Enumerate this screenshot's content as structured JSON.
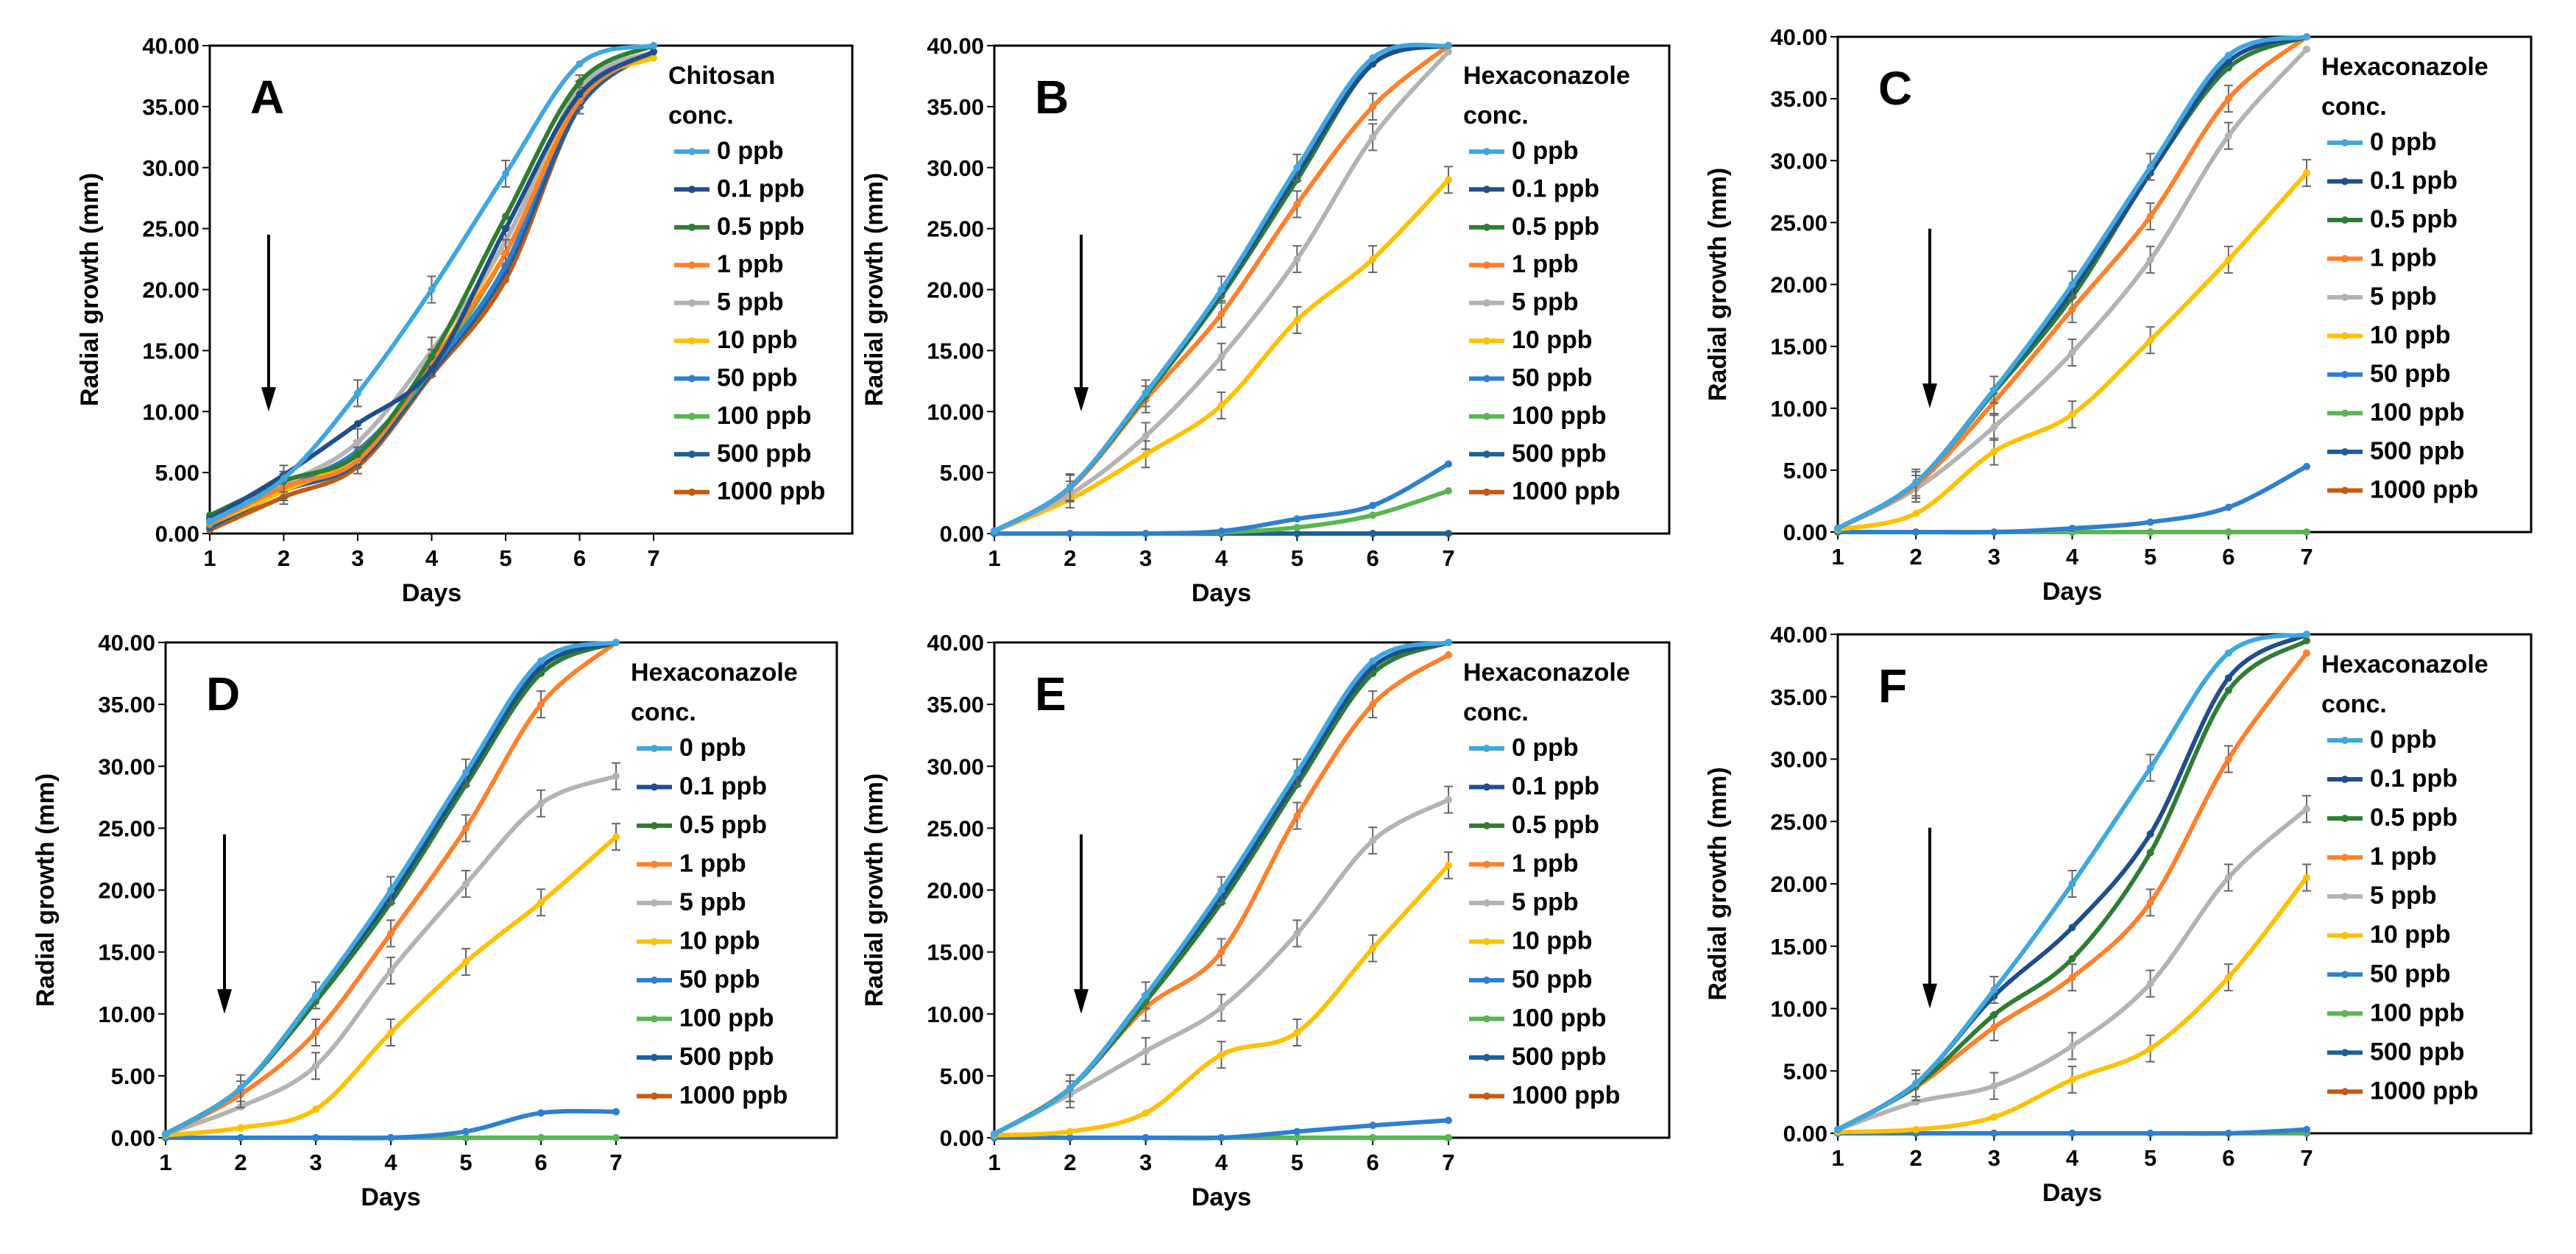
{
  "figure": {
    "ylabel": "Radial growth (mm)",
    "xlabel": "Days",
    "x_ticks": [
      1,
      2,
      3,
      4,
      5,
      6,
      7
    ],
    "y_ticks": [
      "0.00",
      "5.00",
      "10.00",
      "15.00",
      "20.00",
      "25.00",
      "30.00",
      "35.00",
      "40.00"
    ],
    "series_names": [
      "0 ppb",
      "0.1 ppb",
      "0.5 ppb",
      "1 ppb",
      "5 ppb",
      "10 ppb",
      "50 ppb",
      "100 ppb",
      "500 ppb",
      "1000 ppb"
    ],
    "colors": [
      "#3fa7e0",
      "#1f4e8c",
      "#2e7d32",
      "#ff7f2a",
      "#b3b3b3",
      "#ffc000",
      "#2f7fd0",
      "#5ab552",
      "#1d5f9a",
      "#c55a11"
    ]
  },
  "chart_data": [
    {
      "type": "line",
      "panel": "A",
      "legend_title_line1": "Chitosan",
      "legend_title_line2": "conc.",
      "xlabel": "Days",
      "ylabel": "Radial growth (mm)",
      "xlim": [
        1,
        7
      ],
      "ylim": [
        0,
        40
      ],
      "x": [
        1,
        2,
        3,
        4,
        5,
        6,
        7
      ],
      "series": [
        {
          "name": "0 ppb",
          "values": [
            1.0,
            4.5,
            11.5,
            20.0,
            29.5,
            38.5,
            40.0
          ]
        },
        {
          "name": "0.1 ppb",
          "values": [
            1.2,
            4.8,
            9.0,
            13.5,
            25.0,
            36.0,
            39.5
          ]
        },
        {
          "name": "0.5 ppb",
          "values": [
            1.5,
            4.3,
            6.5,
            14.5,
            26.0,
            37.0,
            40.0
          ]
        },
        {
          "name": "1 ppb",
          "values": [
            0.8,
            3.8,
            6.0,
            14.0,
            23.0,
            35.5,
            39.5
          ]
        },
        {
          "name": "5 ppb",
          "values": [
            1.0,
            4.0,
            7.5,
            15.0,
            24.0,
            36.5,
            39.5
          ]
        },
        {
          "name": "10 ppb",
          "values": [
            0.8,
            3.5,
            6.5,
            14.0,
            24.0,
            36.0,
            39.0
          ]
        },
        {
          "name": "50 ppb",
          "values": [
            0.7,
            3.8,
            6.8,
            13.5,
            22.0,
            36.0,
            39.5
          ]
        },
        {
          "name": "100 ppb",
          "values": [
            0.8,
            3.7,
            6.5,
            13.5,
            23.0,
            35.5,
            39.5
          ]
        },
        {
          "name": "500 ppb",
          "values": [
            0.5,
            3.5,
            5.8,
            13.2,
            21.5,
            35.0,
            39.5
          ]
        },
        {
          "name": "1000 ppb",
          "values": [
            0.3,
            3.0,
            5.5,
            13.0,
            20.8,
            35.0,
            39.5
          ]
        }
      ]
    },
    {
      "type": "line",
      "panel": "B",
      "legend_title_line1": "Hexaconazole",
      "legend_title_line2": "conc.",
      "xlabel": "Days",
      "ylabel": "Radial growth (mm)",
      "xlim": [
        1,
        7
      ],
      "ylim": [
        0,
        40
      ],
      "x": [
        1,
        2,
        3,
        4,
        5,
        6,
        7
      ],
      "series": [
        {
          "name": "0 ppb",
          "values": [
            0.2,
            3.8,
            11.5,
            20.0,
            30.0,
            39.0,
            40.0
          ]
        },
        {
          "name": "0.1 ppb",
          "values": [
            0.2,
            3.8,
            11.5,
            19.8,
            29.5,
            38.5,
            40.0
          ]
        },
        {
          "name": "0.5 ppb",
          "values": [
            0.2,
            3.8,
            11.3,
            19.5,
            29.0,
            38.5,
            40.0
          ]
        },
        {
          "name": "1 ppb",
          "values": [
            0.2,
            3.7,
            11.0,
            18.0,
            27.0,
            35.0,
            40.0
          ]
        },
        {
          "name": "5 ppb",
          "values": [
            0.2,
            3.2,
            8.0,
            14.5,
            22.5,
            32.5,
            39.5
          ]
        },
        {
          "name": "10 ppb",
          "values": [
            0.2,
            2.8,
            6.5,
            10.5,
            17.5,
            22.5,
            29.0
          ]
        },
        {
          "name": "50 ppb",
          "values": [
            0.0,
            0.0,
            0.0,
            0.2,
            1.2,
            2.3,
            5.7
          ]
        },
        {
          "name": "100 ppb",
          "values": [
            0.0,
            0.0,
            0.0,
            0.1,
            0.5,
            1.5,
            3.5
          ]
        },
        {
          "name": "500 ppb",
          "values": [
            0.0,
            0.0,
            0.0,
            0.0,
            0.0,
            0.0,
            0.0
          ]
        },
        {
          "name": "1000 ppb",
          "values": [
            0.0,
            0.0,
            0.0,
            0.0,
            0.0,
            0.0,
            0.0
          ]
        }
      ]
    },
    {
      "type": "line",
      "panel": "C",
      "legend_title_line1": "Hexaconazole",
      "legend_title_line2": "conc.",
      "xlabel": "Days",
      "ylabel": "Radial growth (mm)",
      "xlim": [
        1,
        7
      ],
      "ylim": [
        0,
        40
      ],
      "x": [
        1,
        2,
        3,
        4,
        5,
        6,
        7
      ],
      "series": [
        {
          "name": "0 ppb",
          "values": [
            0.3,
            4.0,
            11.5,
            20.0,
            29.5,
            38.5,
            40.0
          ]
        },
        {
          "name": "0.1 ppb",
          "values": [
            0.3,
            4.0,
            11.5,
            19.5,
            29.0,
            38.0,
            40.0
          ]
        },
        {
          "name": "0.5 ppb",
          "values": [
            0.3,
            4.0,
            11.3,
            19.0,
            29.0,
            37.5,
            40.0
          ]
        },
        {
          "name": "1 ppb",
          "values": [
            0.3,
            3.8,
            10.5,
            18.0,
            25.5,
            35.0,
            40.0
          ]
        },
        {
          "name": "5 ppb",
          "values": [
            0.3,
            3.5,
            8.5,
            14.5,
            22.0,
            32.0,
            39.0
          ]
        },
        {
          "name": "10 ppb",
          "values": [
            0.2,
            1.5,
            6.5,
            9.5,
            15.5,
            22.0,
            29.0
          ]
        },
        {
          "name": "50 ppb",
          "values": [
            0.0,
            0.0,
            0.0,
            0.3,
            0.8,
            2.0,
            5.3
          ]
        },
        {
          "name": "100 ppb",
          "values": [
            0.0,
            0.0,
            0.0,
            0.0,
            0.0,
            0.0,
            0.0
          ]
        },
        {
          "name": "500 ppb",
          "values": [
            0.0,
            0.0,
            0.0,
            0.0,
            0.0,
            0.0,
            0.0
          ]
        },
        {
          "name": "1000 ppb",
          "values": [
            0.0,
            0.0,
            0.0,
            0.0,
            0.0,
            0.0,
            0.0
          ]
        }
      ]
    },
    {
      "type": "line",
      "panel": "D",
      "legend_title_line1": "Hexaconazole",
      "legend_title_line2": "conc.",
      "xlabel": "Days",
      "ylabel": "Radial growth (mm)",
      "xlim": [
        1,
        7
      ],
      "ylim": [
        0,
        40
      ],
      "x": [
        1,
        2,
        3,
        4,
        5,
        6,
        7
      ],
      "series": [
        {
          "name": "0 ppb",
          "values": [
            0.3,
            4.0,
            11.5,
            20.0,
            29.5,
            38.5,
            40.0
          ]
        },
        {
          "name": "0.1 ppb",
          "values": [
            0.3,
            4.0,
            11.5,
            19.5,
            29.0,
            38.0,
            40.0
          ]
        },
        {
          "name": "0.5 ppb",
          "values": [
            0.3,
            4.0,
            11.0,
            19.0,
            28.5,
            37.5,
            40.0
          ]
        },
        {
          "name": "1 ppb",
          "values": [
            0.3,
            3.5,
            8.5,
            16.5,
            25.0,
            35.0,
            40.0
          ]
        },
        {
          "name": "5 ppb",
          "values": [
            0.3,
            2.5,
            5.8,
            13.5,
            20.5,
            27.0,
            29.2
          ]
        },
        {
          "name": "10 ppb",
          "values": [
            0.2,
            0.8,
            2.3,
            8.5,
            14.2,
            19.0,
            24.3
          ]
        },
        {
          "name": "50 ppb",
          "values": [
            0.0,
            0.0,
            0.0,
            0.0,
            0.5,
            2.0,
            2.1
          ]
        },
        {
          "name": "100 ppb",
          "values": [
            0.0,
            0.0,
            0.0,
            0.0,
            0.0,
            0.0,
            0.0
          ]
        },
        {
          "name": "500 ppb",
          "values": [
            0.0,
            0.0,
            0.0,
            0.0,
            0.0,
            0.0,
            0.0
          ]
        },
        {
          "name": "1000 ppb",
          "values": [
            0.0,
            0.0,
            0.0,
            0.0,
            0.0,
            0.0,
            0.0
          ]
        }
      ]
    },
    {
      "type": "line",
      "panel": "E",
      "legend_title_line1": "Hexaconazole",
      "legend_title_line2": "conc.",
      "xlabel": "Days",
      "ylabel": "Radial growth (mm)",
      "xlim": [
        1,
        7
      ],
      "ylim": [
        0,
        40
      ],
      "x": [
        1,
        2,
        3,
        4,
        5,
        6,
        7
      ],
      "series": [
        {
          "name": "0 ppb",
          "values": [
            0.3,
            4.0,
            11.5,
            20.0,
            29.5,
            38.5,
            40.0
          ]
        },
        {
          "name": "0.1 ppb",
          "values": [
            0.3,
            4.0,
            11.5,
            19.5,
            29.0,
            38.0,
            40.0
          ]
        },
        {
          "name": "0.5 ppb",
          "values": [
            0.3,
            4.0,
            11.0,
            19.0,
            28.5,
            37.5,
            40.0
          ]
        },
        {
          "name": "1 ppb",
          "values": [
            0.3,
            4.0,
            10.5,
            15.0,
            26.0,
            35.0,
            39.0
          ]
        },
        {
          "name": "5 ppb",
          "values": [
            0.3,
            3.5,
            7.0,
            10.5,
            16.5,
            24.0,
            27.3
          ]
        },
        {
          "name": "10 ppb",
          "values": [
            0.2,
            0.5,
            2.0,
            6.7,
            8.5,
            15.3,
            22.0
          ]
        },
        {
          "name": "50 ppb",
          "values": [
            0.0,
            0.0,
            0.0,
            0.0,
            0.5,
            1.0,
            1.4
          ]
        },
        {
          "name": "100 ppb",
          "values": [
            0.0,
            0.0,
            0.0,
            0.0,
            0.0,
            0.0,
            0.0
          ]
        },
        {
          "name": "500 ppb",
          "values": [
            0.0,
            0.0,
            0.0,
            0.0,
            0.0,
            0.0,
            0.0
          ]
        },
        {
          "name": "1000 ppb",
          "values": [
            0.0,
            0.0,
            0.0,
            0.0,
            0.0,
            0.0,
            0.0
          ]
        }
      ]
    },
    {
      "type": "line",
      "panel": "F",
      "legend_title_line1": "Hexaconazole",
      "legend_title_line2": "conc.",
      "xlabel": "Days",
      "ylabel": "Radial growth (mm)",
      "xlim": [
        1,
        7
      ],
      "ylim": [
        0,
        40
      ],
      "x": [
        1,
        2,
        3,
        4,
        5,
        6,
        7
      ],
      "series": [
        {
          "name": "0 ppb",
          "values": [
            0.3,
            4.0,
            11.5,
            20.0,
            29.3,
            38.5,
            40.0
          ]
        },
        {
          "name": "0.1 ppb",
          "values": [
            0.3,
            4.0,
            11.0,
            16.5,
            24.0,
            36.5,
            40.0
          ]
        },
        {
          "name": "0.5 ppb",
          "values": [
            0.3,
            3.8,
            9.5,
            14.0,
            22.5,
            35.5,
            39.5
          ]
        },
        {
          "name": "1 ppb",
          "values": [
            0.3,
            3.7,
            8.5,
            12.5,
            18.5,
            30.0,
            38.5
          ]
        },
        {
          "name": "5 ppb",
          "values": [
            0.3,
            2.5,
            3.8,
            7.0,
            12.0,
            20.5,
            26.0
          ]
        },
        {
          "name": "10 ppb",
          "values": [
            0.1,
            0.3,
            1.3,
            4.3,
            6.8,
            12.5,
            20.5
          ]
        },
        {
          "name": "50 ppb",
          "values": [
            0.0,
            0.0,
            0.0,
            0.0,
            0.0,
            0.0,
            0.3
          ]
        },
        {
          "name": "100 ppb",
          "values": [
            0.0,
            0.0,
            0.0,
            0.0,
            0.0,
            0.0,
            0.0
          ]
        },
        {
          "name": "500 ppb",
          "values": [
            0.0,
            0.0,
            0.0,
            0.0,
            0.0,
            0.0,
            0.0
          ]
        },
        {
          "name": "1000 ppb",
          "values": [
            0.0,
            0.0,
            0.0,
            0.0,
            0.0,
            0.0,
            0.0
          ]
        }
      ]
    }
  ]
}
